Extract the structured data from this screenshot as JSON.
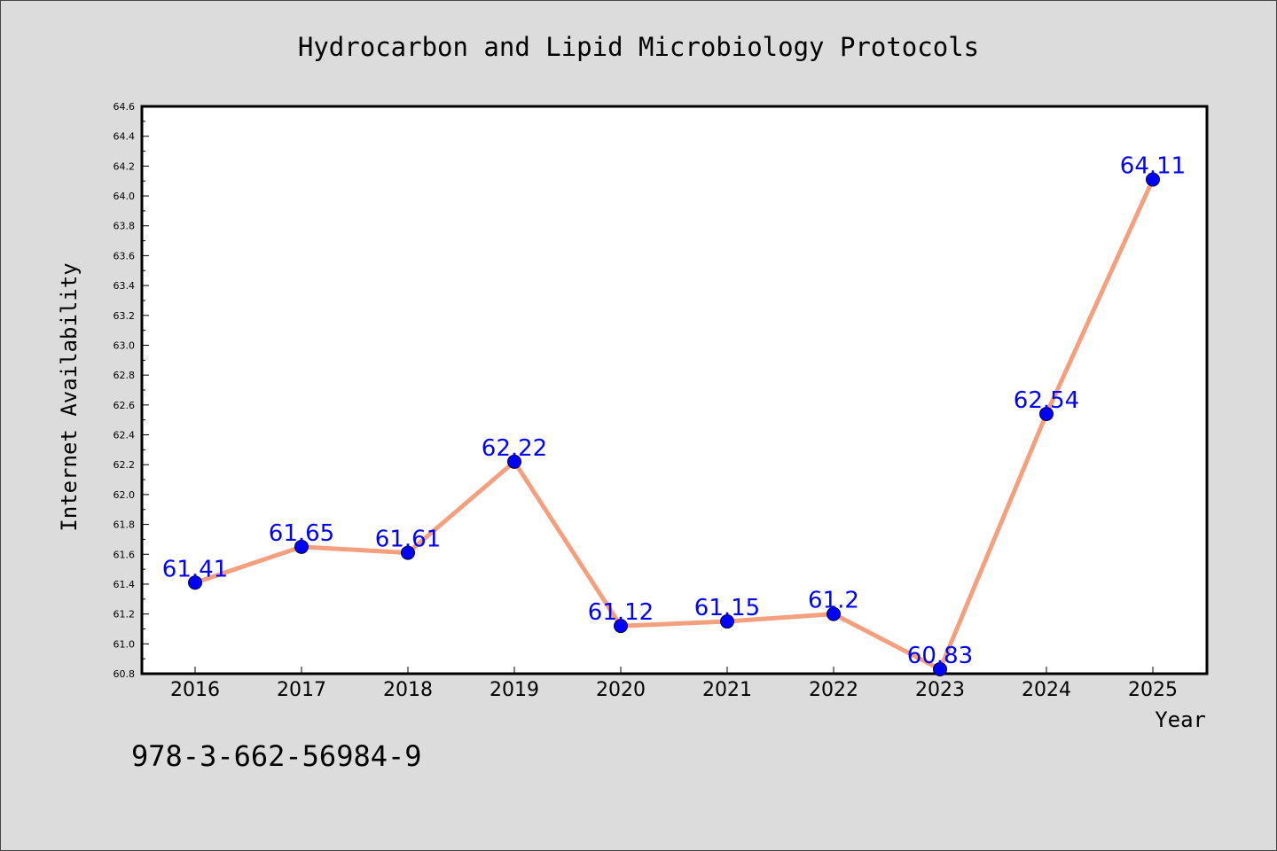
{
  "chart_data": {
    "type": "line",
    "title": "Hydrocarbon and Lipid Microbiology Protocols",
    "xlabel": "Year",
    "ylabel": "Internet Availability",
    "categories": [
      "2016",
      "2017",
      "2018",
      "2019",
      "2020",
      "2021",
      "2022",
      "2023",
      "2024",
      "2025"
    ],
    "series": [
      {
        "values": [
          61.41,
          61.65,
          61.61,
          62.22,
          61.12,
          61.15,
          61.2,
          60.83,
          62.54,
          64.11
        ],
        "point_labels": [
          "61.41",
          "61.65",
          "61.61",
          "62.22",
          "61.12",
          "61.15",
          "61.2",
          "60.83",
          "62.54",
          "64.11"
        ],
        "line_color": "#f4a07e",
        "marker_color": "#0000ff"
      }
    ],
    "ylim": [
      60.8,
      64.6
    ],
    "yticks": [
      "60.8",
      "61.0",
      "61.2",
      "61.4",
      "61.6",
      "61.8",
      "62.0",
      "62.2",
      "62.4",
      "62.6",
      "62.8",
      "63.0",
      "63.2",
      "63.4",
      "63.6",
      "63.8",
      "64.0",
      "64.2",
      "64.4",
      "64.6"
    ],
    "grid": false,
    "legend": "none"
  },
  "footer": {
    "isbn": "978-3-662-56984-9"
  },
  "colors": {
    "background": "#dcdcdc",
    "plot_background": "#ffffff",
    "line": "#f4a07e",
    "marker": "#0000ff",
    "data_label": "#0000ff"
  }
}
